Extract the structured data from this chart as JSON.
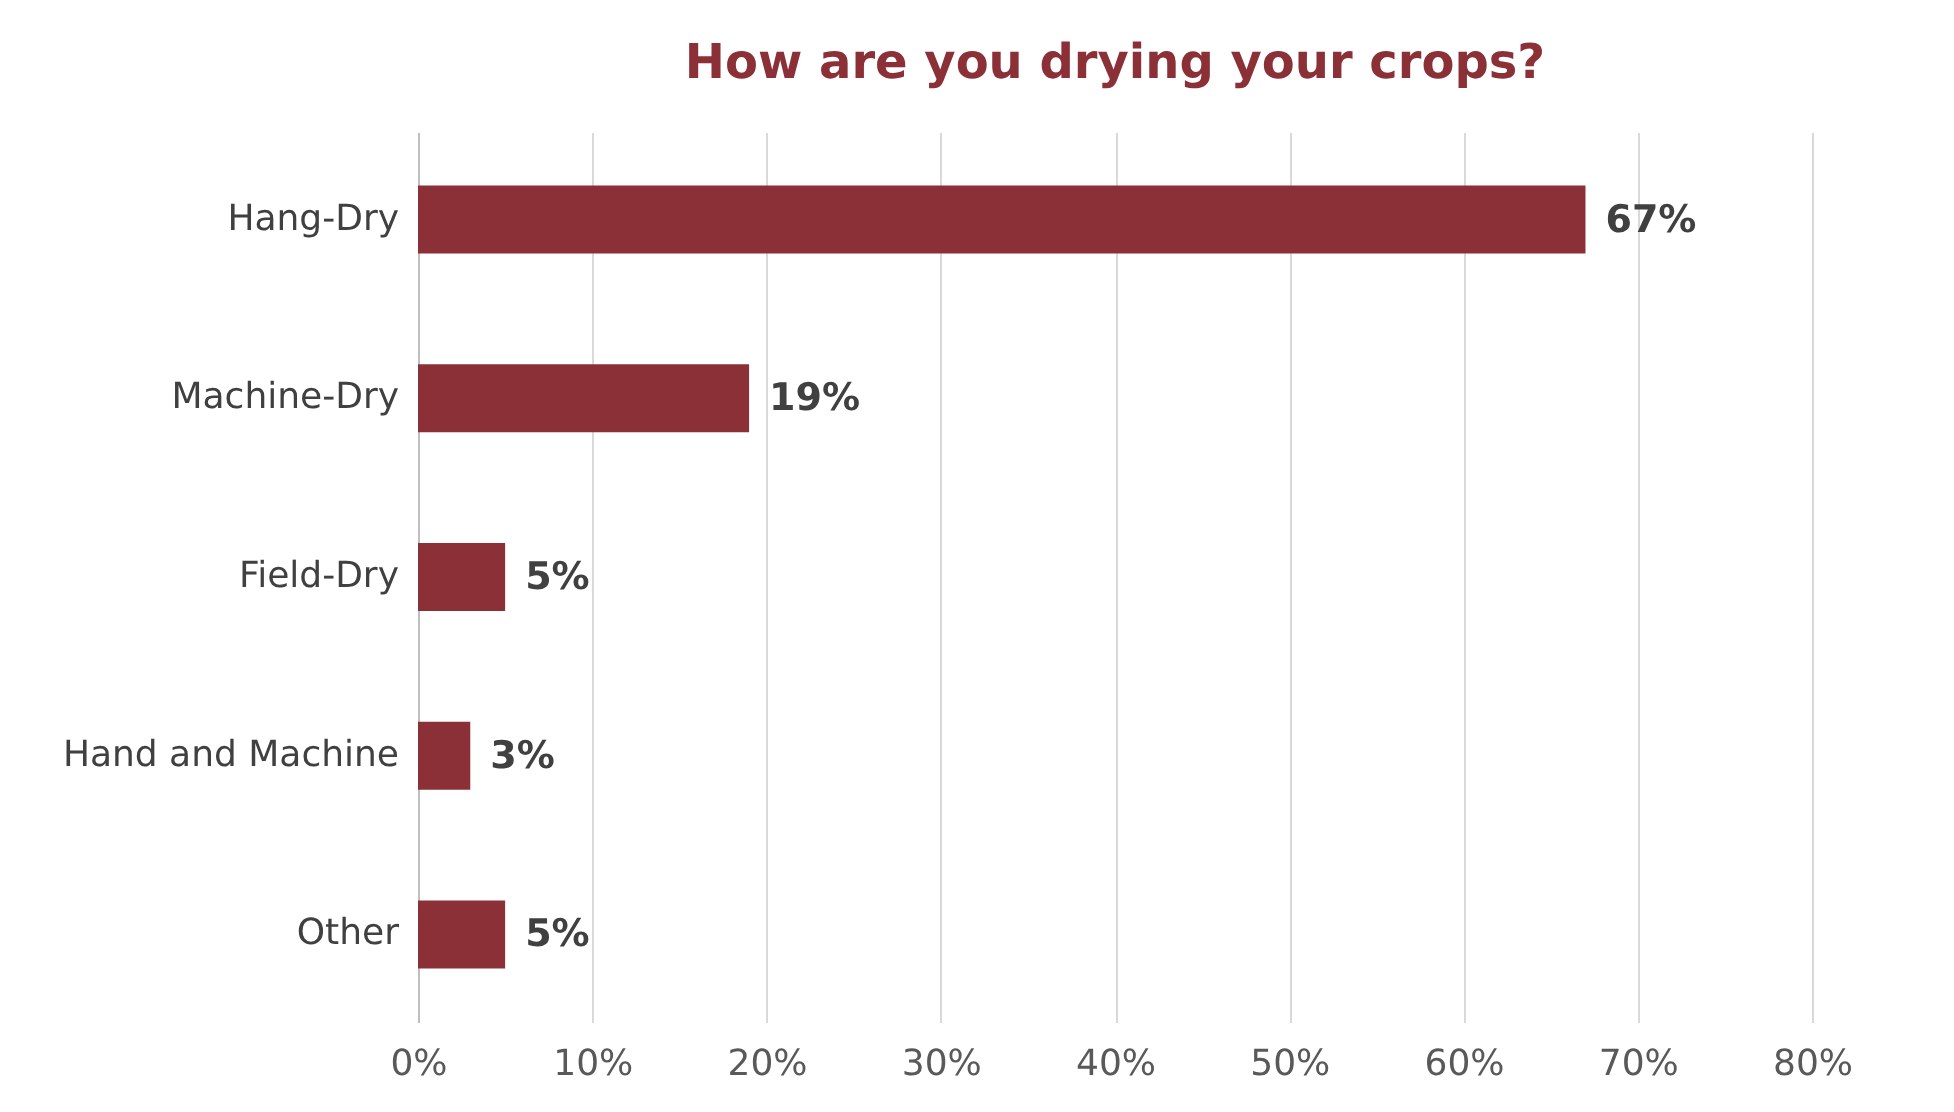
{
  "chart_data": {
    "type": "bar",
    "orientation": "horizontal",
    "title": "How are you drying your crops?",
    "categories": [
      "Hang-Dry",
      "Machine-Dry",
      "Field-Dry",
      "Hand and Machine",
      "Other"
    ],
    "values": [
      67,
      19,
      5,
      3,
      5
    ],
    "value_labels": [
      "67%",
      "19%",
      "5%",
      "3%",
      "5%"
    ],
    "color": "#8b3036",
    "xlim": [
      0,
      80
    ],
    "xticks": [
      {
        "value": 0,
        "label": "0%"
      },
      {
        "value": 10,
        "label": "10%"
      },
      {
        "value": 20,
        "label": "20%"
      },
      {
        "value": 30,
        "label": "30%"
      },
      {
        "value": 40,
        "label": "40%"
      },
      {
        "value": 50,
        "label": "50%"
      },
      {
        "value": 60,
        "label": "60%"
      },
      {
        "value": 70,
        "label": "70%"
      },
      {
        "value": 80,
        "label": "80%"
      }
    ],
    "grid": "x"
  }
}
